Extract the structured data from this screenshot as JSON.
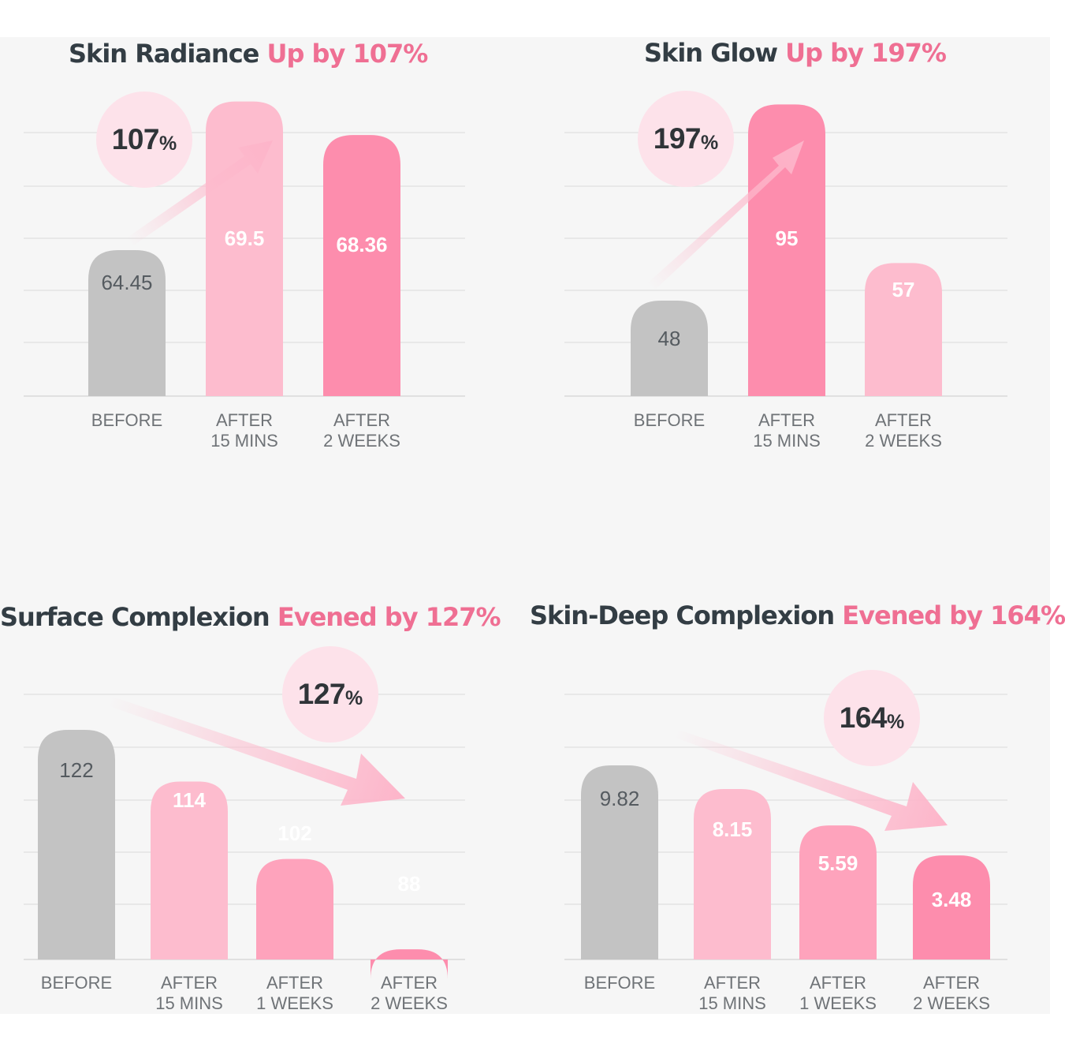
{
  "colors": {
    "before": "#c3c3c3",
    "light_pink": "#fdbcce",
    "mid_pink": "#fea3bc",
    "pink": "#fd8dad",
    "title_dark": "#333d44",
    "title_highlight": "#ef6f93",
    "badge_fill": "#fde2ea",
    "gridline": "#e3e3e3"
  },
  "chart_data": [
    {
      "type": "bar",
      "title": "Skin Radiance",
      "title_highlight": "Up by 107%",
      "badge": {
        "value": "107",
        "unit": "%"
      },
      "categories": [
        "BEFORE",
        "AFTER\n15 MINS",
        "AFTER\n2 WEEKS"
      ],
      "values": [
        "64.45",
        "69.5",
        "68.36"
      ],
      "colors": [
        "#c3c3c3",
        "#fdbcce",
        "#fd8dad"
      ],
      "arrow_direction": "up",
      "grid": true
    },
    {
      "type": "bar",
      "title": "Skin Glow",
      "title_highlight": "Up by 197%",
      "badge": {
        "value": "197",
        "unit": "%"
      },
      "categories": [
        "BEFORE",
        "AFTER\n15 MINS",
        "AFTER\n2 WEEKS"
      ],
      "values": [
        "48",
        "95",
        "57"
      ],
      "colors": [
        "#c3c3c3",
        "#fd8dad",
        "#fdbcce"
      ],
      "arrow_direction": "up",
      "grid": true
    },
    {
      "type": "bar",
      "title": "Surface Complexion",
      "title_highlight": "Evened by 127%",
      "badge": {
        "value": "127",
        "unit": "%"
      },
      "categories": [
        "BEFORE",
        "AFTER\n15 MINS",
        "AFTER\n1 WEEKS",
        "AFTER\n2 WEEKS"
      ],
      "values": [
        "122",
        "114",
        "102",
        "88"
      ],
      "colors": [
        "#c3c3c3",
        "#fdbcce",
        "#fea3bc",
        "#fd8dad"
      ],
      "arrow_direction": "down",
      "grid": true
    },
    {
      "type": "bar",
      "title": "Skin-Deep Complexion",
      "title_highlight": "Evened by 164%",
      "badge": {
        "value": "164",
        "unit": "%"
      },
      "categories": [
        "BEFORE",
        "AFTER\n15 MINS",
        "AFTER\n1 WEEKS",
        "AFTER\n2 WEEKS"
      ],
      "values": [
        "9.82",
        "8.15",
        "5.59",
        "3.48"
      ],
      "colors": [
        "#c3c3c3",
        "#fdbcce",
        "#fea3bc",
        "#fd8dad"
      ],
      "arrow_direction": "down",
      "grid": true
    }
  ]
}
